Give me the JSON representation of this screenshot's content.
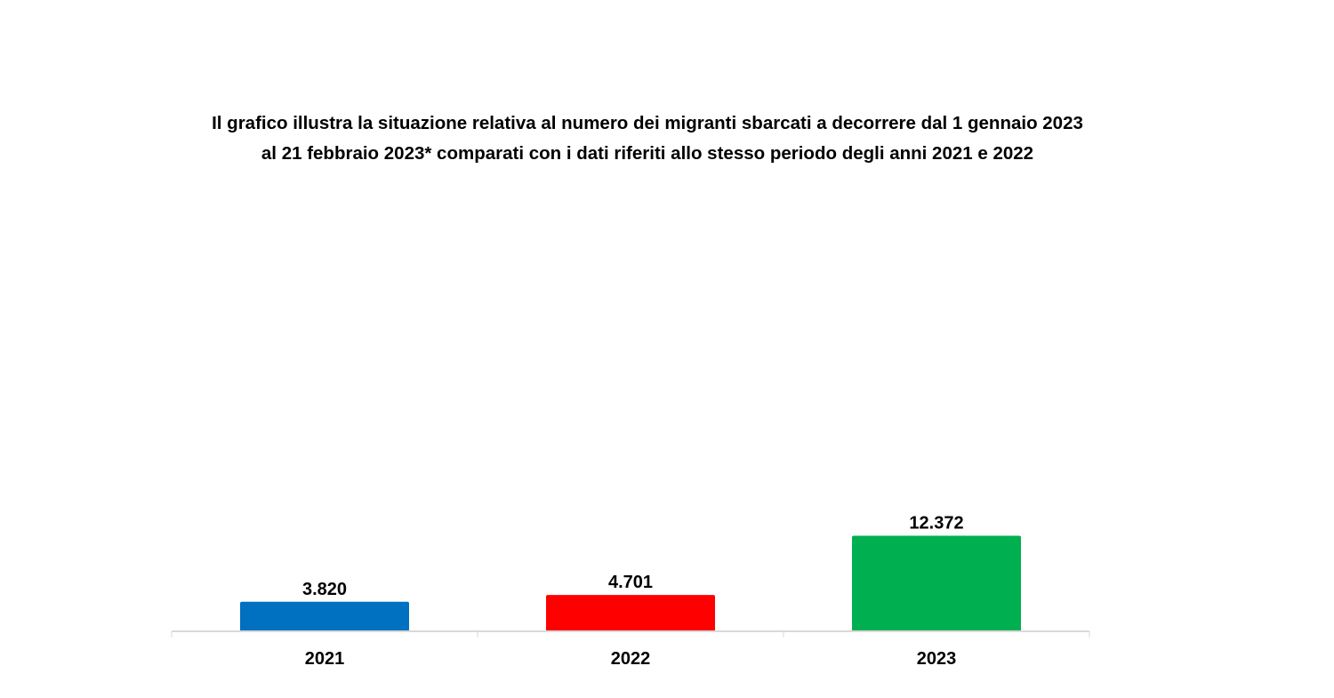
{
  "chart_data": {
    "type": "bar",
    "title": "Il grafico illustra la situazione relativa al numero dei migranti sbarcati a decorrere dal 1 gennaio 2023 al 21 febbraio 2023* comparati con i dati riferiti allo stesso periodo degli anni 2021 e 2022",
    "categories": [
      "2021",
      "2022",
      "2023"
    ],
    "values": [
      3820,
      4701,
      12372
    ],
    "value_labels": [
      "3.820",
      "4.701",
      "12.372"
    ],
    "colors": [
      "#0070C0",
      "#FF0000",
      "#00B050"
    ],
    "xlabel": "",
    "ylabel": "",
    "ylim": [
      0,
      65000
    ],
    "grid": false,
    "legend": "none"
  }
}
